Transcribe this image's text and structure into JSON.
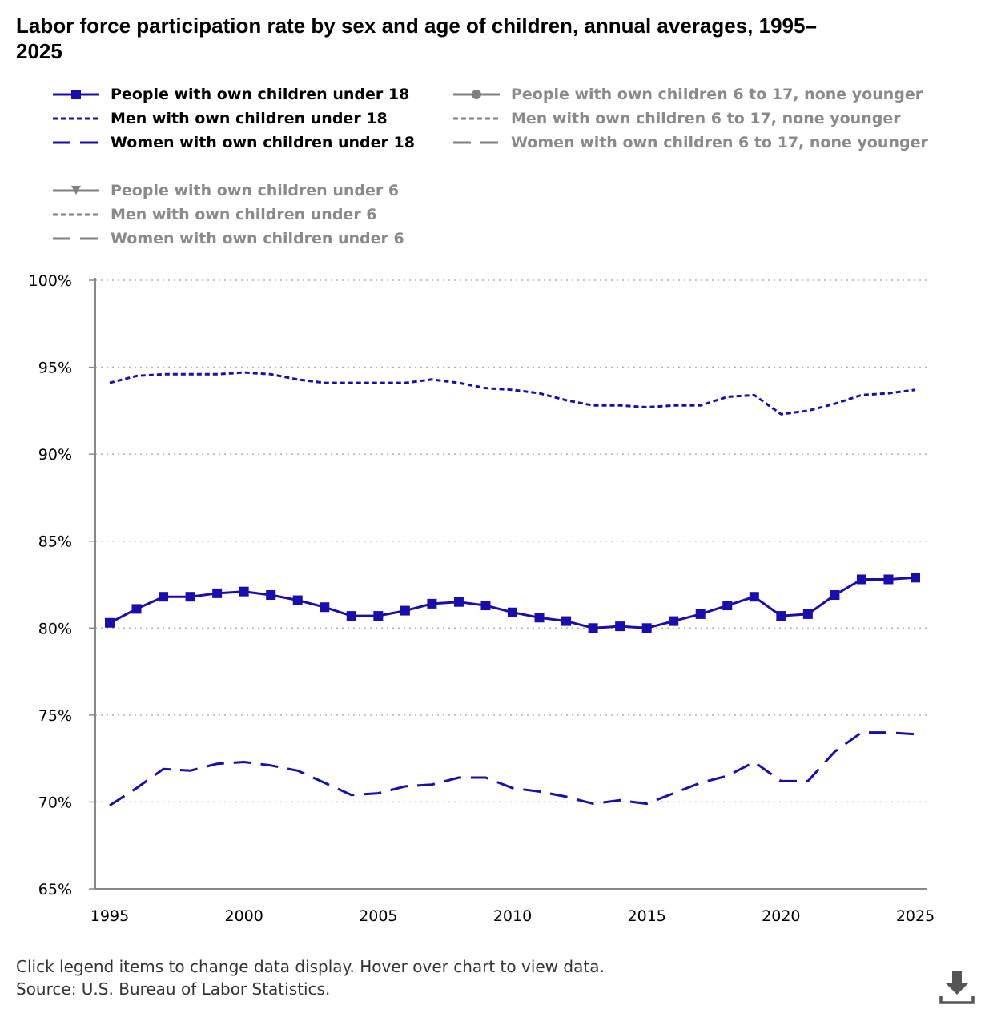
{
  "chart_data": {
    "type": "line",
    "title": "Labor force participation rate by sex and age of children, annual averages, 1995–2025",
    "x": [
      1995,
      1996,
      1997,
      1998,
      1999,
      2000,
      2001,
      2002,
      2003,
      2004,
      2005,
      2006,
      2007,
      2008,
      2009,
      2010,
      2011,
      2012,
      2013,
      2014,
      2015,
      2016,
      2017,
      2018,
      2019,
      2020,
      2021,
      2022,
      2023,
      2024,
      2025
    ],
    "xticks": [
      "1995",
      "2000",
      "2005",
      "2010",
      "2015",
      "2020",
      "2025"
    ],
    "ylim": [
      65,
      100
    ],
    "yticks": [
      "65%",
      "70%",
      "75%",
      "80%",
      "85%",
      "90%",
      "95%",
      "100%"
    ],
    "grid": true,
    "legend_position": "top",
    "series": [
      {
        "name": "People with own children under 18",
        "visible": true,
        "style": "solid-square",
        "color": "#1a0dab",
        "values": [
          80.3,
          81.1,
          81.8,
          81.8,
          82.0,
          82.1,
          81.9,
          81.6,
          81.2,
          80.7,
          80.7,
          81.0,
          81.4,
          81.5,
          81.3,
          80.9,
          80.6,
          80.4,
          80.0,
          80.1,
          80.0,
          80.4,
          80.8,
          81.3,
          81.8,
          80.7,
          80.8,
          81.9,
          82.8,
          82.8,
          82.9
        ]
      },
      {
        "name": "Men with own children under 18",
        "visible": true,
        "style": "dotted",
        "color": "#1a0dab",
        "values": [
          94.1,
          94.5,
          94.6,
          94.6,
          94.6,
          94.7,
          94.6,
          94.3,
          94.1,
          94.1,
          94.1,
          94.1,
          94.3,
          94.1,
          93.8,
          93.7,
          93.5,
          93.1,
          92.8,
          92.8,
          92.7,
          92.8,
          92.8,
          93.3,
          93.4,
          92.3,
          92.5,
          92.9,
          93.4,
          93.5,
          93.7
        ]
      },
      {
        "name": "Women with own children under 18",
        "visible": true,
        "style": "dashed",
        "color": "#1a0dab",
        "values": [
          69.8,
          70.8,
          71.9,
          71.8,
          72.2,
          72.3,
          72.1,
          71.8,
          71.1,
          70.4,
          70.5,
          70.9,
          71.0,
          71.4,
          71.4,
          70.8,
          70.6,
          70.3,
          69.9,
          70.1,
          69.9,
          70.5,
          71.1,
          71.5,
          72.3,
          71.2,
          71.2,
          72.9,
          74.0,
          74.0,
          73.9
        ]
      },
      {
        "name": "People with own children 6 to 17, none younger",
        "visible": false,
        "style": "solid-circle",
        "color": "#808080"
      },
      {
        "name": "Men with own children 6 to 17, none younger",
        "visible": false,
        "style": "dotted",
        "color": "#808080"
      },
      {
        "name": "Women with own children 6 to 17, none younger",
        "visible": false,
        "style": "dashed",
        "color": "#808080"
      },
      {
        "name": "People with own children under 6",
        "visible": false,
        "style": "solid-triangle",
        "color": "#808080"
      },
      {
        "name": "Men with own children under 6",
        "visible": false,
        "style": "dotted",
        "color": "#808080"
      },
      {
        "name": "Women with own children under 6",
        "visible": false,
        "style": "dashed",
        "color": "#808080"
      }
    ]
  },
  "footer": {
    "note": "Click legend items to change data display. Hover over chart to view data.",
    "source": "Source: U.S. Bureau of Labor Statistics."
  },
  "icons": {
    "download": "download-icon"
  }
}
